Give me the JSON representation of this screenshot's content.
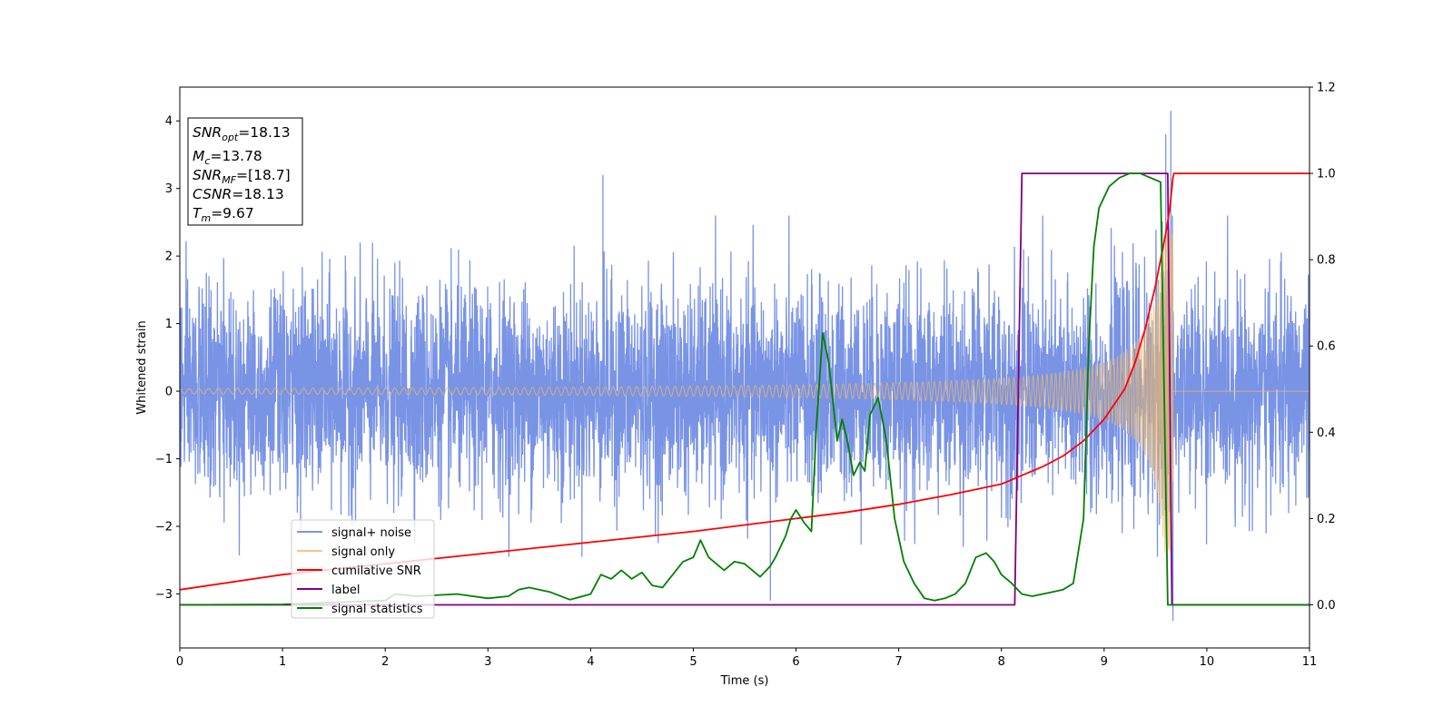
{
  "chart_data": {
    "type": "line",
    "xlabel": "Time (s)",
    "ylabel": "Whitened strain",
    "xlim": [
      0,
      11
    ],
    "ylim_left": [
      -3.8,
      4.5
    ],
    "ylim_right": [
      -0.1,
      1.2
    ],
    "x_ticks": [
      "0",
      "1",
      "2",
      "3",
      "4",
      "5",
      "6",
      "7",
      "8",
      "9",
      "10",
      "11"
    ],
    "y_ticks_left": [
      "−3",
      "−2",
      "−1",
      "0",
      "1",
      "2",
      "3",
      "4"
    ],
    "y_ticks_right": [
      "0.0",
      "0.2",
      "0.4",
      "0.6",
      "0.8",
      "1.0",
      "1.2"
    ],
    "grid": false,
    "legend_position": "lower-left",
    "annotation_box": {
      "position": "upper-left",
      "lines": [
        {
          "name": "SNR",
          "sub": "opt",
          "value": "=18.13"
        },
        {
          "name": "M",
          "sub": "c",
          "value": "=13.78"
        },
        {
          "name": "SNR",
          "sub": "MF",
          "value": "=[18.7]"
        },
        {
          "name": "CSNR",
          "sub": "",
          "value": "=18.13"
        },
        {
          "name": "T",
          "sub": "m",
          "value": "=9.67"
        }
      ]
    },
    "series": [
      {
        "name": "signal+ noise",
        "axis": "left",
        "color": "#6a87e2",
        "kind": "noise_envelope",
        "noise_sigma": 0.75,
        "notable_spikes": [
          [
            4.12,
            3.2
          ],
          [
            9.6,
            3.8
          ],
          [
            9.65,
            4.15
          ],
          [
            9.67,
            -3.4
          ],
          [
            5.75,
            -3.1
          ]
        ]
      },
      {
        "name": "signal only",
        "axis": "left",
        "color": "#f0b866",
        "kind": "chirp",
        "merger_time": 9.67,
        "peak_amplitude": 2.4,
        "start_amplitude": 0.04
      },
      {
        "name": "cumilative SNR",
        "axis": "right",
        "color": "#ff0000",
        "x": [
          0,
          1,
          2,
          3,
          4,
          5,
          6,
          6.5,
          7,
          7.5,
          8,
          8.2,
          8.4,
          8.6,
          8.8,
          9.0,
          9.2,
          9.3,
          9.4,
          9.5,
          9.55,
          9.6,
          9.64,
          9.67,
          9.68,
          11
        ],
        "y": [
          0.035,
          0.07,
          0.095,
          0.12,
          0.145,
          0.17,
          0.2,
          0.215,
          0.233,
          0.255,
          0.28,
          0.3,
          0.32,
          0.345,
          0.38,
          0.43,
          0.5,
          0.56,
          0.64,
          0.74,
          0.8,
          0.86,
          0.92,
          0.99,
          1.0,
          1.0
        ]
      },
      {
        "name": "label",
        "axis": "right",
        "color": "#800080",
        "x": [
          0,
          8.13,
          8.2,
          9.62,
          9.66,
          11
        ],
        "y": [
          0.0,
          0.0,
          1.0,
          1.0,
          0.0,
          0.0
        ]
      },
      {
        "name": "signal statistics",
        "axis": "right",
        "color": "#008000",
        "x": [
          0,
          1,
          2,
          2.1,
          2.3,
          2.7,
          3.0,
          3.2,
          3.3,
          3.4,
          3.6,
          3.8,
          4.0,
          4.1,
          4.2,
          4.3,
          4.4,
          4.5,
          4.6,
          4.7,
          4.8,
          4.9,
          5.0,
          5.07,
          5.15,
          5.3,
          5.4,
          5.5,
          5.65,
          5.75,
          5.8,
          5.9,
          5.95,
          6.0,
          6.08,
          6.15,
          6.2,
          6.26,
          6.32,
          6.4,
          6.45,
          6.5,
          6.56,
          6.62,
          6.67,
          6.72,
          6.8,
          6.88,
          6.96,
          7.05,
          7.15,
          7.25,
          7.35,
          7.45,
          7.55,
          7.65,
          7.75,
          7.85,
          7.93,
          8.0,
          8.1,
          8.2,
          8.3,
          8.4,
          8.5,
          8.6,
          8.7,
          8.8,
          8.85,
          8.9,
          8.95,
          9.05,
          9.15,
          9.25,
          9.35,
          9.45,
          9.55,
          9.62,
          9.66,
          9.7,
          11
        ],
        "y": [
          0.0,
          0.001,
          0.01,
          0.025,
          0.02,
          0.025,
          0.015,
          0.02,
          0.035,
          0.04,
          0.03,
          0.012,
          0.025,
          0.07,
          0.06,
          0.08,
          0.06,
          0.075,
          0.045,
          0.04,
          0.07,
          0.1,
          0.11,
          0.15,
          0.11,
          0.08,
          0.1,
          0.095,
          0.065,
          0.09,
          0.11,
          0.16,
          0.2,
          0.22,
          0.19,
          0.17,
          0.42,
          0.63,
          0.56,
          0.38,
          0.43,
          0.38,
          0.3,
          0.33,
          0.31,
          0.44,
          0.48,
          0.38,
          0.2,
          0.1,
          0.05,
          0.015,
          0.01,
          0.015,
          0.025,
          0.05,
          0.11,
          0.12,
          0.1,
          0.07,
          0.05,
          0.025,
          0.02,
          0.025,
          0.03,
          0.035,
          0.05,
          0.2,
          0.6,
          0.83,
          0.92,
          0.97,
          0.99,
          1.0,
          1.0,
          0.99,
          0.98,
          0.0,
          0.0,
          0.0,
          0.0
        ]
      }
    ]
  }
}
